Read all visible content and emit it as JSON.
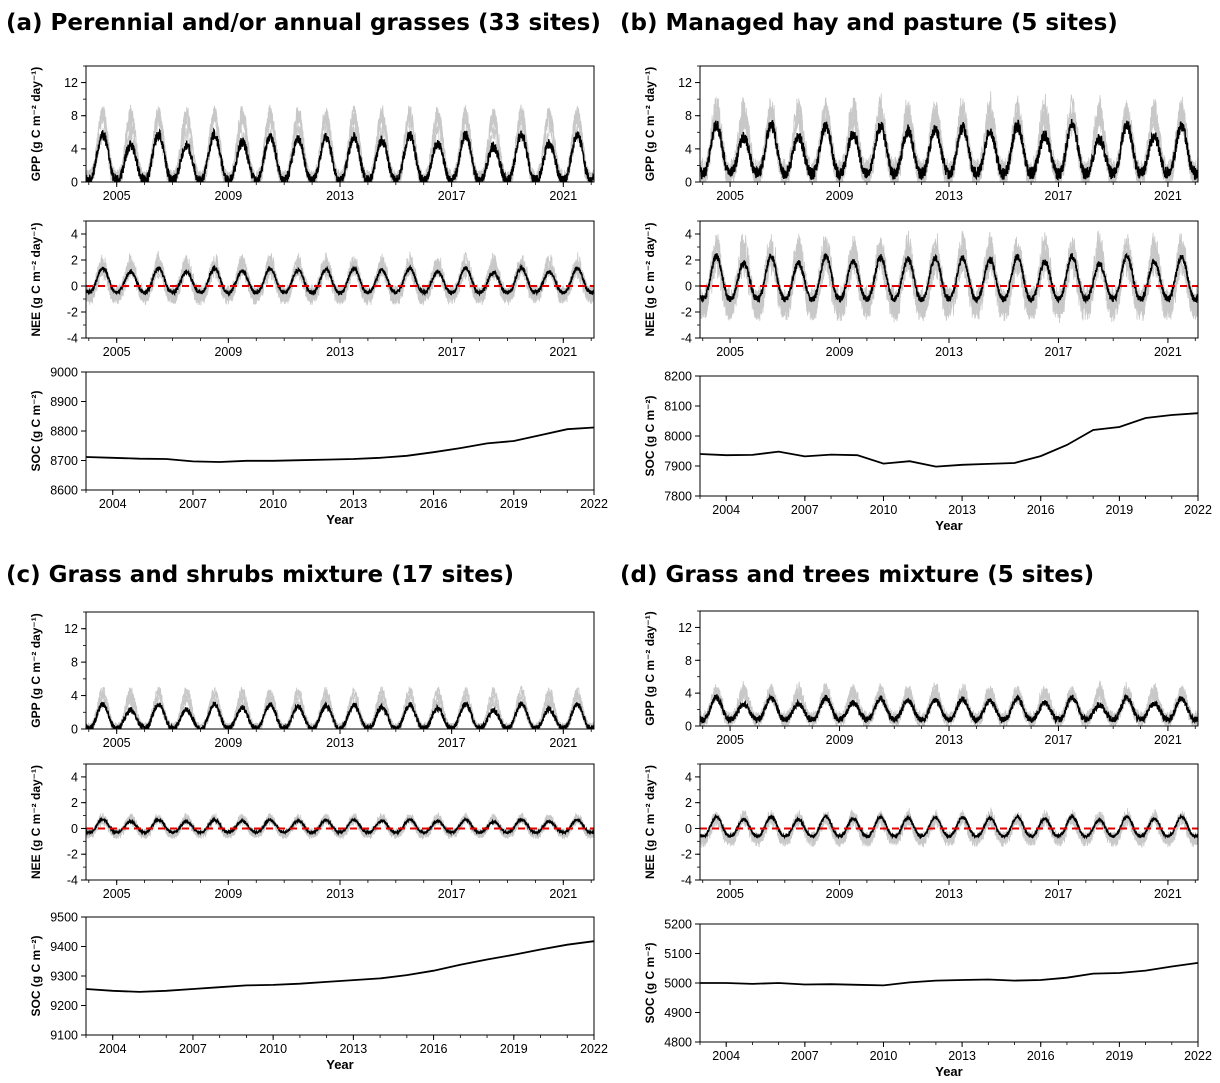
{
  "panels": [
    {
      "id": "a",
      "title": "(a) Perennial and/or annual grasses (33 sites)"
    },
    {
      "id": "b",
      "title": "(b) Managed hay and pasture (5 sites)"
    },
    {
      "id": "c",
      "title": "(c) Grass and shrubs mixture (17 sites)"
    },
    {
      "id": "d",
      "title": "(d) Grass and trees mixture (5 sites)"
    }
  ],
  "axis_text": {
    "gpp_ylabel": "GPP (g C m⁻² day⁻¹)",
    "nee_ylabel": "NEE (g C m⁻² day⁻¹)",
    "soc_ylabel": "SOC (g C m⁻²)",
    "soc_xlabel": "Year"
  },
  "chart_data": [
    {
      "panel": "a",
      "subplot": "GPP",
      "type": "line",
      "ylim": [
        0,
        14
      ],
      "y_ticks": [
        0,
        4,
        8,
        12
      ],
      "x_tick_labels": [
        "2005",
        "2009",
        "2013",
        "2017",
        "2021"
      ],
      "x_range_years": [
        2003.9,
        2022.1
      ],
      "series": [
        {
          "name": "",
          "seasonal_peak": 5.0,
          "seasonal_base": 0.2,
          "cycles_per_year": 1,
          "note_values": "mean peaks ~4.5-6"
        }
      ]
    },
    {
      "panel": "a",
      "subplot": "NEE",
      "type": "line",
      "ylim": [
        -4,
        5
      ],
      "y_ticks": [
        -4,
        -2,
        0,
        2,
        4
      ],
      "x_tick_labels": [
        "2005",
        "2009",
        "2013",
        "2017",
        "2021"
      ],
      "x_range_years": [
        2003.9,
        2022.1
      ],
      "zero_line": "red-dashed",
      "series": [
        {
          "name": "",
          "seasonal_peak": 1.2,
          "seasonal_base": -0.5
        }
      ]
    },
    {
      "panel": "a",
      "subplot": "SOC",
      "type": "line",
      "ylim": [
        8600,
        9000
      ],
      "y_ticks": [
        8600,
        8700,
        8800,
        8900,
        9000
      ],
      "x_tick_labels": [
        "2004",
        "2007",
        "2010",
        "2013",
        "2016",
        "2019",
        "2022"
      ],
      "xlabel": "Year",
      "x": [
        2003,
        2004,
        2005,
        2006,
        2007,
        2008,
        2009,
        2010,
        2011,
        2012,
        2013,
        2014,
        2015,
        2016,
        2017,
        2018,
        2019,
        2020,
        2021,
        2022
      ],
      "y": [
        8712,
        8709,
        8706,
        8705,
        8697,
        8695,
        8699,
        8699,
        8701,
        8703,
        8705,
        8709,
        8716,
        8728,
        8742,
        8758,
        8766,
        8786,
        8806,
        8812
      ]
    },
    {
      "panel": "b",
      "subplot": "GPP",
      "type": "line",
      "ylim": [
        0,
        14
      ],
      "y_ticks": [
        0,
        4,
        8,
        12
      ],
      "x_tick_labels": [
        "2005",
        "2009",
        "2013",
        "2017",
        "2021"
      ],
      "x_range_years": [
        2003.9,
        2022.1
      ],
      "series": [
        {
          "name": "",
          "seasonal_peak": 6.0,
          "seasonal_base": 1.0
        }
      ]
    },
    {
      "panel": "b",
      "subplot": "NEE",
      "type": "line",
      "ylim": [
        -4,
        5
      ],
      "y_ticks": [
        -4,
        -2,
        0,
        2,
        4
      ],
      "x_tick_labels": [
        "2005",
        "2009",
        "2013",
        "2017",
        "2021"
      ],
      "x_range_years": [
        2003.9,
        2022.1
      ],
      "zero_line": "red-dashed",
      "series": [
        {
          "name": "",
          "seasonal_peak": 2.0,
          "seasonal_base": -1.0
        }
      ]
    },
    {
      "panel": "b",
      "subplot": "SOC",
      "type": "line",
      "ylim": [
        7800,
        8200
      ],
      "y_ticks": [
        7800,
        7900,
        8000,
        8100,
        8200
      ],
      "x_tick_labels": [
        "2004",
        "2007",
        "2010",
        "2013",
        "2016",
        "2019",
        "2022"
      ],
      "xlabel": "Year",
      "x": [
        2003,
        2004,
        2005,
        2006,
        2007,
        2008,
        2009,
        2010,
        2011,
        2012,
        2013,
        2014,
        2015,
        2016,
        2017,
        2018,
        2019,
        2020,
        2021,
        2022
      ],
      "y": [
        7940,
        7936,
        7937,
        7948,
        7932,
        7938,
        7936,
        7908,
        7916,
        7898,
        7904,
        7907,
        7910,
        7933,
        7970,
        8020,
        8030,
        8060,
        8070,
        8076
      ]
    },
    {
      "panel": "c",
      "subplot": "GPP",
      "type": "line",
      "ylim": [
        0,
        14
      ],
      "y_ticks": [
        0,
        4,
        8,
        12
      ],
      "x_tick_labels": [
        "2005",
        "2009",
        "2013",
        "2017",
        "2021"
      ],
      "x_range_years": [
        2003.9,
        2022.1
      ],
      "series": [
        {
          "name": "",
          "seasonal_peak": 2.6,
          "seasonal_base": 0.1
        }
      ]
    },
    {
      "panel": "c",
      "subplot": "NEE",
      "type": "line",
      "ylim": [
        -4,
        5
      ],
      "y_ticks": [
        -4,
        -2,
        0,
        2,
        4
      ],
      "x_tick_labels": [
        "2005",
        "2009",
        "2013",
        "2017",
        "2021"
      ],
      "x_range_years": [
        2003.9,
        2022.1
      ],
      "zero_line": "red-dashed",
      "series": [
        {
          "name": "",
          "seasonal_peak": 0.6,
          "seasonal_base": -0.3
        }
      ]
    },
    {
      "panel": "c",
      "subplot": "SOC",
      "type": "line",
      "ylim": [
        9100,
        9500
      ],
      "y_ticks": [
        9100,
        9200,
        9300,
        9400,
        9500
      ],
      "x_tick_labels": [
        "2004",
        "2007",
        "2010",
        "2013",
        "2016",
        "2019",
        "2022"
      ],
      "xlabel": "Year",
      "x": [
        2003,
        2004,
        2005,
        2006,
        2007,
        2008,
        2009,
        2010,
        2011,
        2012,
        2013,
        2014,
        2015,
        2016,
        2017,
        2018,
        2019,
        2020,
        2021,
        2022
      ],
      "y": [
        9256,
        9250,
        9246,
        9250,
        9256,
        9262,
        9268,
        9270,
        9274,
        9280,
        9286,
        9292,
        9303,
        9318,
        9338,
        9356,
        9372,
        9390,
        9406,
        9418
      ]
    },
    {
      "panel": "d",
      "subplot": "GPP",
      "type": "line",
      "ylim": [
        0,
        14
      ],
      "y_ticks": [
        0,
        4,
        8,
        12
      ],
      "x_tick_labels": [
        "2005",
        "2009",
        "2013",
        "2017",
        "2021"
      ],
      "x_range_years": [
        2003.9,
        2022.1
      ],
      "series": [
        {
          "name": "",
          "seasonal_peak": 3.0,
          "seasonal_base": 0.8
        }
      ]
    },
    {
      "panel": "d",
      "subplot": "NEE",
      "type": "line",
      "ylim": [
        -4,
        5
      ],
      "y_ticks": [
        -4,
        -2,
        0,
        2,
        4
      ],
      "x_tick_labels": [
        "2005",
        "2009",
        "2013",
        "2017",
        "2021"
      ],
      "x_range_years": [
        2003.9,
        2022.1
      ],
      "zero_line": "red-dashed",
      "series": [
        {
          "name": "",
          "seasonal_peak": 0.8,
          "seasonal_base": -0.6
        }
      ]
    },
    {
      "panel": "d",
      "subplot": "SOC",
      "type": "line",
      "ylim": [
        4800,
        5200
      ],
      "y_ticks": [
        4800,
        4900,
        5000,
        5100,
        5200
      ],
      "x_tick_labels": [
        "2004",
        "2007",
        "2010",
        "2013",
        "2016",
        "2019",
        "2022"
      ],
      "xlabel": "Year",
      "x": [
        2003,
        2004,
        2005,
        2006,
        2007,
        2008,
        2009,
        2010,
        2011,
        2012,
        2013,
        2014,
        2015,
        2016,
        2017,
        2018,
        2019,
        2020,
        2021,
        2022
      ],
      "y": [
        5000,
        5000,
        4997,
        5000,
        4995,
        4996,
        4994,
        4992,
        5002,
        5008,
        5010,
        5012,
        5008,
        5010,
        5018,
        5032,
        5034,
        5042,
        5056,
        5068
      ]
    }
  ]
}
